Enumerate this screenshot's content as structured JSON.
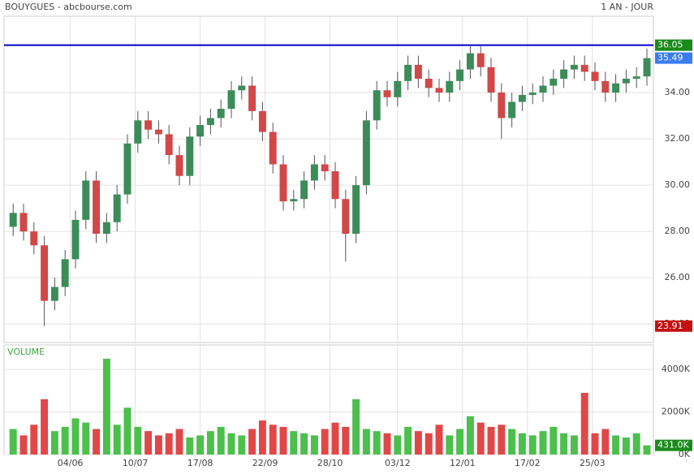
{
  "chart_data": [
    {
      "type": "candlestick",
      "title": "BOUYGUES - abcbourse.com",
      "subtitle": "1 AN - JOUR",
      "x": [
        2,
        6,
        10,
        14,
        18,
        22,
        26,
        30,
        34,
        38,
        42,
        46,
        50,
        54,
        58,
        62,
        66,
        70,
        74,
        78,
        82,
        86,
        90,
        94,
        98,
        102,
        106,
        110,
        114,
        118,
        122,
        126,
        130,
        134,
        138,
        142,
        146,
        150,
        154,
        158,
        162,
        166,
        170,
        174,
        178,
        182,
        186,
        190,
        194,
        198,
        202,
        206,
        210,
        214,
        218,
        222,
        226,
        230,
        234,
        238,
        242,
        246
      ],
      "open": [
        28.2,
        28.8,
        28.0,
        27.4,
        25.0,
        25.6,
        26.8,
        28.5,
        30.2,
        27.9,
        28.4,
        29.6,
        31.8,
        32.8,
        32.4,
        32.2,
        31.3,
        30.4,
        32.1,
        32.6,
        32.9,
        33.3,
        34.1,
        34.3,
        33.2,
        32.3,
        30.9,
        29.3,
        29.4,
        30.2,
        30.9,
        30.6,
        29.4,
        27.9,
        30.0,
        32.8,
        34.1,
        33.8,
        34.5,
        35.2,
        34.6,
        34.2,
        34.0,
        34.5,
        35.0,
        35.7,
        35.1,
        34.0,
        32.9,
        33.6,
        33.9,
        34.0,
        34.3,
        34.6,
        35.0,
        35.2,
        34.9,
        34.5,
        34.0,
        34.4,
        34.6,
        34.7
      ],
      "high": [
        29.2,
        29.2,
        28.4,
        27.8,
        26.0,
        27.2,
        28.9,
        30.6,
        30.6,
        28.8,
        30.0,
        32.2,
        33.2,
        33.2,
        32.8,
        32.6,
        31.7,
        32.5,
        33.0,
        33.3,
        33.7,
        34.5,
        34.7,
        34.7,
        33.6,
        32.7,
        31.3,
        29.8,
        30.6,
        31.3,
        31.3,
        31.0,
        29.8,
        30.4,
        33.2,
        34.5,
        34.5,
        34.9,
        35.6,
        35.6,
        35.0,
        34.6,
        34.9,
        35.4,
        36.05,
        36.0,
        35.5,
        34.4,
        34.0,
        34.3,
        34.4,
        34.7,
        35.0,
        35.4,
        35.6,
        35.6,
        35.3,
        34.9,
        34.8,
        35.0,
        35.1,
        35.9
      ],
      "low": [
        27.8,
        27.6,
        27.0,
        23.91,
        24.6,
        25.2,
        26.4,
        28.1,
        27.5,
        27.5,
        28.0,
        29.2,
        31.4,
        32.0,
        31.8,
        30.9,
        30.0,
        30.0,
        31.7,
        32.2,
        32.5,
        32.9,
        33.7,
        32.8,
        31.9,
        30.5,
        28.9,
        28.9,
        29.0,
        29.8,
        30.2,
        29.0,
        26.7,
        27.5,
        29.6,
        32.4,
        33.4,
        33.4,
        34.1,
        34.2,
        33.8,
        33.6,
        33.6,
        34.1,
        34.6,
        34.7,
        33.6,
        32.0,
        32.5,
        33.2,
        33.5,
        33.6,
        33.9,
        34.2,
        34.6,
        34.5,
        34.1,
        33.6,
        33.6,
        34.0,
        34.2,
        34.3
      ],
      "close": [
        28.8,
        28.0,
        27.4,
        25.0,
        25.6,
        26.8,
        28.5,
        30.2,
        27.9,
        28.4,
        29.6,
        31.8,
        32.8,
        32.4,
        32.2,
        31.3,
        30.4,
        32.1,
        32.6,
        32.9,
        33.3,
        34.1,
        34.3,
        33.2,
        32.3,
        30.9,
        29.3,
        29.4,
        30.2,
        30.9,
        30.6,
        29.4,
        27.9,
        30.0,
        32.8,
        34.1,
        33.8,
        34.5,
        35.2,
        34.6,
        34.2,
        34.0,
        34.5,
        35.0,
        35.7,
        35.1,
        34.0,
        32.9,
        33.6,
        33.9,
        34.0,
        34.3,
        34.6,
        35.0,
        35.2,
        34.9,
        34.5,
        34.0,
        34.4,
        34.6,
        34.7,
        35.49
      ],
      "up_color": "#3c8c5a",
      "down_color": "#d04848",
      "xlim": [
        -1.5,
        248.5
      ],
      "xticks": [
        {
          "value": 24,
          "label": "04/06"
        },
        {
          "value": 49,
          "label": "10/07"
        },
        {
          "value": 74,
          "label": "17/08"
        },
        {
          "value": 99,
          "label": "22/09"
        },
        {
          "value": 124,
          "label": "28/10"
        },
        {
          "value": 150,
          "label": "03/12"
        },
        {
          "value": 175,
          "label": "12/01"
        },
        {
          "value": 200,
          "label": "17/02"
        },
        {
          "value": 225,
          "label": "25/03"
        }
      ],
      "ylim": [
        23.2,
        37.3
      ],
      "yticks": [
        {
          "value": 24,
          "label": "24.00"
        },
        {
          "value": 26,
          "label": "26.00"
        },
        {
          "value": 28,
          "label": "28.00"
        },
        {
          "value": 30,
          "label": "30.00"
        },
        {
          "value": 32,
          "label": "32.00"
        },
        {
          "value": 34,
          "label": "34.00"
        }
      ],
      "grid": true,
      "reference_line": {
        "value": 36.05,
        "color": "#0000cc"
      },
      "annotations": [
        {
          "value": 36.05,
          "color": "#1a8a1a"
        },
        {
          "value": 35.49,
          "color": "#3a7cf0"
        },
        {
          "value": 23.91,
          "color": "#c41010"
        }
      ]
    },
    {
      "type": "bar",
      "title": "VOLUME",
      "x": [
        2,
        6,
        10,
        14,
        18,
        22,
        26,
        30,
        34,
        38,
        42,
        46,
        50,
        54,
        58,
        62,
        66,
        70,
        74,
        78,
        82,
        86,
        90,
        94,
        98,
        102,
        106,
        110,
        114,
        118,
        122,
        126,
        130,
        134,
        138,
        142,
        146,
        150,
        154,
        158,
        162,
        166,
        170,
        174,
        178,
        182,
        186,
        190,
        194,
        198,
        202,
        206,
        210,
        214,
        218,
        222,
        226,
        230,
        234,
        238,
        242,
        246
      ],
      "values": [
        1200,
        900,
        1400,
        2600,
        1100,
        1300,
        1700,
        1500,
        1200,
        4500,
        1400,
        2200,
        1300,
        1100,
        900,
        1000,
        1200,
        800,
        900,
        1100,
        1300,
        1000,
        900,
        1200,
        1600,
        1400,
        1300,
        1100,
        1000,
        900,
        1200,
        1500,
        1300,
        2600,
        1200,
        1100,
        1000,
        900,
        1300,
        1100,
        1000,
        1400,
        900,
        1200,
        1800,
        1500,
        1300,
        1400,
        1200,
        1000,
        900,
        1100,
        1300,
        1000,
        900,
        2900,
        1000,
        1200,
        900,
        800,
        1000,
        431
      ],
      "up_color": "#4cbf4c",
      "down_color": "#e04848",
      "ylim": [
        0,
        5150
      ],
      "yticks": [
        {
          "value": 0,
          "label": "0K"
        },
        {
          "value": 2000,
          "label": "2000K"
        },
        {
          "value": 4000,
          "label": "4000K"
        }
      ],
      "grid": true,
      "annotation": {
        "value": 431,
        "label": "431.0K",
        "color": "#1a8a1a"
      }
    }
  ]
}
